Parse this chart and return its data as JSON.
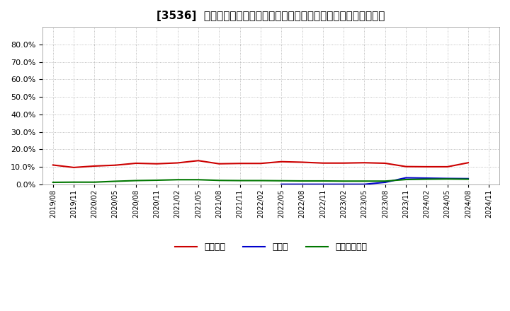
{
  "title": "[3536]  自己資本、のれん、繰延税金資産の総資産に対する比率の推移",
  "background_color": "#ffffff",
  "plot_bg_color": "#ffffff",
  "grid_color": "#aaaaaa",
  "dates": [
    "2019/08",
    "2019/11",
    "2020/02",
    "2020/05",
    "2020/08",
    "2020/11",
    "2021/02",
    "2021/05",
    "2021/08",
    "2021/11",
    "2022/02",
    "2022/05",
    "2022/08",
    "2022/11",
    "2023/02",
    "2023/05",
    "2023/08",
    "2023/11",
    "2024/02",
    "2024/05",
    "2024/08",
    "2024/11"
  ],
  "jikoshihon": [
    0.111,
    0.097,
    0.105,
    0.11,
    0.121,
    0.118,
    0.123,
    0.136,
    0.118,
    0.12,
    0.12,
    0.13,
    0.127,
    0.122,
    0.122,
    0.124,
    0.121,
    0.102,
    0.101,
    0.101,
    0.124,
    null
  ],
  "noren": [
    null,
    null,
    null,
    null,
    null,
    null,
    null,
    null,
    null,
    null,
    null,
    0.001,
    0.001,
    0.001,
    0.001,
    0.001,
    0.012,
    0.038,
    0.036,
    0.034,
    0.033,
    null
  ],
  "kurinobe": [
    0.012,
    0.013,
    0.013,
    0.018,
    0.022,
    0.024,
    0.027,
    0.027,
    0.023,
    0.022,
    0.022,
    0.021,
    0.02,
    0.02,
    0.019,
    0.019,
    0.019,
    0.028,
    0.03,
    0.031,
    0.03,
    null
  ],
  "jikoshihon_color": "#cc0000",
  "noren_color": "#0000cc",
  "kurinobe_color": "#007700",
  "legend_labels": [
    "自己資本",
    "のれん",
    "繰延税金資産"
  ],
  "line_width": 1.5,
  "ylim": [
    0.0,
    0.9
  ],
  "yticks": [
    0.0,
    0.1,
    0.2,
    0.3,
    0.4,
    0.5,
    0.6,
    0.7,
    0.8
  ]
}
